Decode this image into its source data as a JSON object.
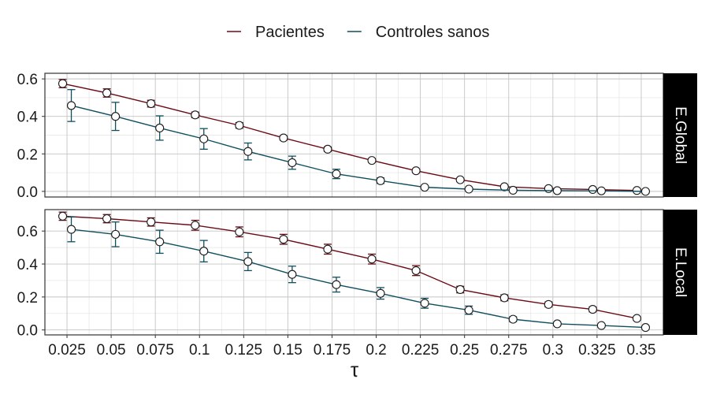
{
  "chart_data": {
    "type": "line",
    "legend": {
      "placement": "top",
      "items": [
        {
          "name": "Pacientes",
          "color": "#6b0a14"
        },
        {
          "name": "Controles sanos",
          "color": "#0e4f5f"
        }
      ]
    },
    "xlabel": "τ",
    "x": [
      0.025,
      0.05,
      0.075,
      0.1,
      0.125,
      0.15,
      0.175,
      0.2,
      0.225,
      0.25,
      0.275,
      0.3,
      0.325,
      0.35
    ],
    "x_tick_labels": [
      "0.025",
      "0.05",
      "0.075",
      "0.1",
      "0.125",
      "0.15",
      "0.175",
      "0.2",
      "0.225",
      "0.25",
      "0.275",
      "0.3",
      "0.325",
      "0.35"
    ],
    "xlim": [
      0.0125,
      0.3625
    ],
    "grid": true,
    "error_bars": true,
    "panels": [
      {
        "strip_label": "E.Global",
        "ylim": [
          -0.03,
          0.63
        ],
        "y_ticks": [
          0.0,
          0.2,
          0.4,
          0.6
        ],
        "y_tick_labels": [
          "0.0",
          "0.2",
          "0.4",
          "0.6"
        ],
        "series": [
          {
            "name": "Pacientes",
            "values": [
              0.575,
              0.525,
              0.468,
              0.408,
              0.352,
              0.285,
              0.225,
              0.165,
              0.11,
              0.062,
              0.025,
              0.015,
              0.01,
              0.005
            ],
            "errors": [
              0.022,
              0.022,
              0.018,
              0.015,
              0.015,
              0.012,
              0.012,
              0.01,
              0.01,
              0.008,
              0.006,
              0.005,
              0.004,
              0.003
            ]
          },
          {
            "name": "Controles sanos",
            "values": [
              0.458,
              0.4,
              0.338,
              0.28,
              0.213,
              0.153,
              0.093,
              0.057,
              0.022,
              0.012,
              0.006,
              0.004,
              0.003,
              0.0
            ],
            "errors": [
              0.085,
              0.075,
              0.065,
              0.055,
              0.045,
              0.035,
              0.025,
              0.015,
              0.008,
              0.005,
              0.004,
              0.003,
              0.002,
              0.002
            ]
          }
        ]
      },
      {
        "strip_label": "E.Local",
        "ylim": [
          -0.03,
          0.73
        ],
        "y_ticks": [
          0.0,
          0.2,
          0.4,
          0.6
        ],
        "y_tick_labels": [
          "0.0",
          "0.2",
          "0.4",
          "0.6"
        ],
        "series": [
          {
            "name": "Pacientes",
            "values": [
              0.69,
              0.675,
              0.655,
              0.635,
              0.595,
              0.55,
              0.49,
              0.43,
              0.36,
              0.245,
              0.195,
              0.155,
              0.125,
              0.07
            ],
            "errors": [
              0.025,
              0.025,
              0.025,
              0.03,
              0.03,
              0.03,
              0.03,
              0.03,
              0.03,
              0.02,
              0.018,
              0.015,
              0.015,
              0.01
            ]
          },
          {
            "name": "Controles sanos",
            "values": [
              0.61,
              0.58,
              0.535,
              0.478,
              0.415,
              0.337,
              0.275,
              0.222,
              0.162,
              0.12,
              0.065,
              0.037,
              0.027,
              0.015
            ],
            "errors": [
              0.075,
              0.075,
              0.07,
              0.065,
              0.055,
              0.05,
              0.045,
              0.035,
              0.03,
              0.025,
              0.015,
              0.01,
              0.008,
              0.006
            ]
          }
        ]
      }
    ]
  }
}
